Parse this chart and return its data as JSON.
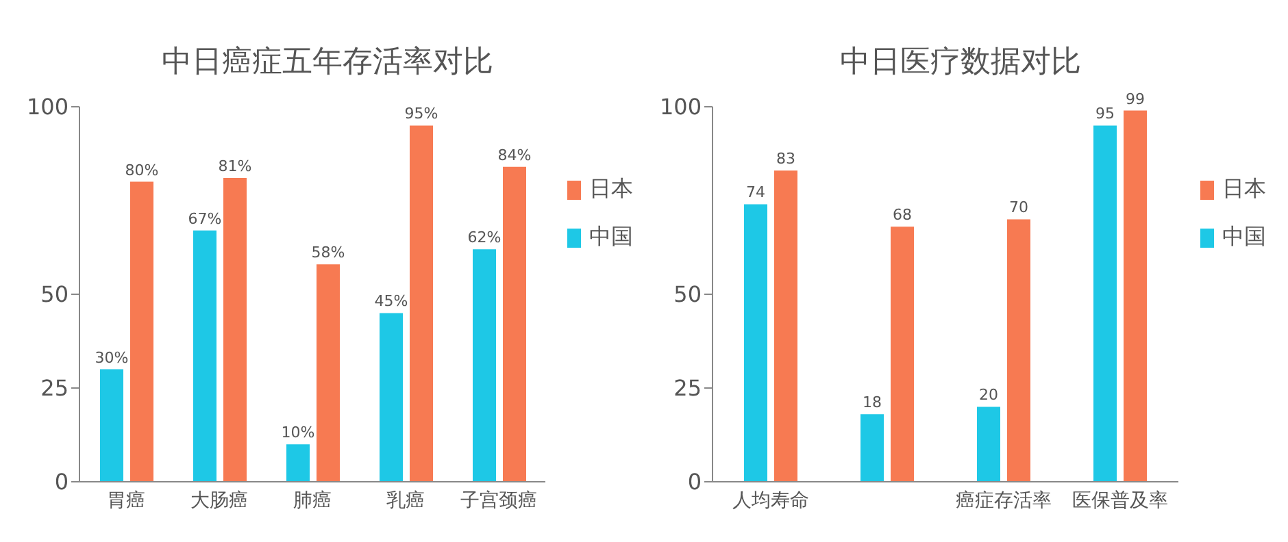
{
  "chart_data": [
    {
      "type": "bar",
      "title": "中日癌症五年存活率对比",
      "categories": [
        "胃癌",
        "大肠癌",
        "肺癌",
        "乳癌",
        "子宫颈癌"
      ],
      "series": [
        {
          "name": "中国",
          "color": "#1ec8e6",
          "values": [
            30,
            67,
            10,
            45,
            62
          ],
          "value_labels": [
            "30%",
            "67%",
            "10%",
            "45%",
            "62%"
          ]
        },
        {
          "name": "日本",
          "color": "#f77a52",
          "values": [
            80,
            81,
            58,
            95,
            84
          ],
          "value_labels": [
            "80%",
            "81%",
            "58%",
            "95%",
            "84%"
          ]
        }
      ],
      "ylim": [
        0,
        100
      ],
      "yticks": [
        0,
        25,
        50,
        100
      ],
      "grid": false,
      "legend": "right"
    },
    {
      "type": "bar",
      "title": "中日医疗数据对比",
      "categories": [
        "人均寿命",
        null,
        "癌症存活率",
        "医保普及率"
      ],
      "series": [
        {
          "name": "中国",
          "color": "#1ec8e6",
          "values": [
            74,
            18,
            20,
            95
          ]
        },
        {
          "name": "日本",
          "color": "#f77a52",
          "values": [
            83,
            68,
            70,
            99
          ]
        }
      ],
      "ylim": [
        0,
        100
      ],
      "yticks": [
        0,
        25,
        50,
        100
      ],
      "grid": false,
      "legend": "right",
      "data_labels": true
    }
  ]
}
